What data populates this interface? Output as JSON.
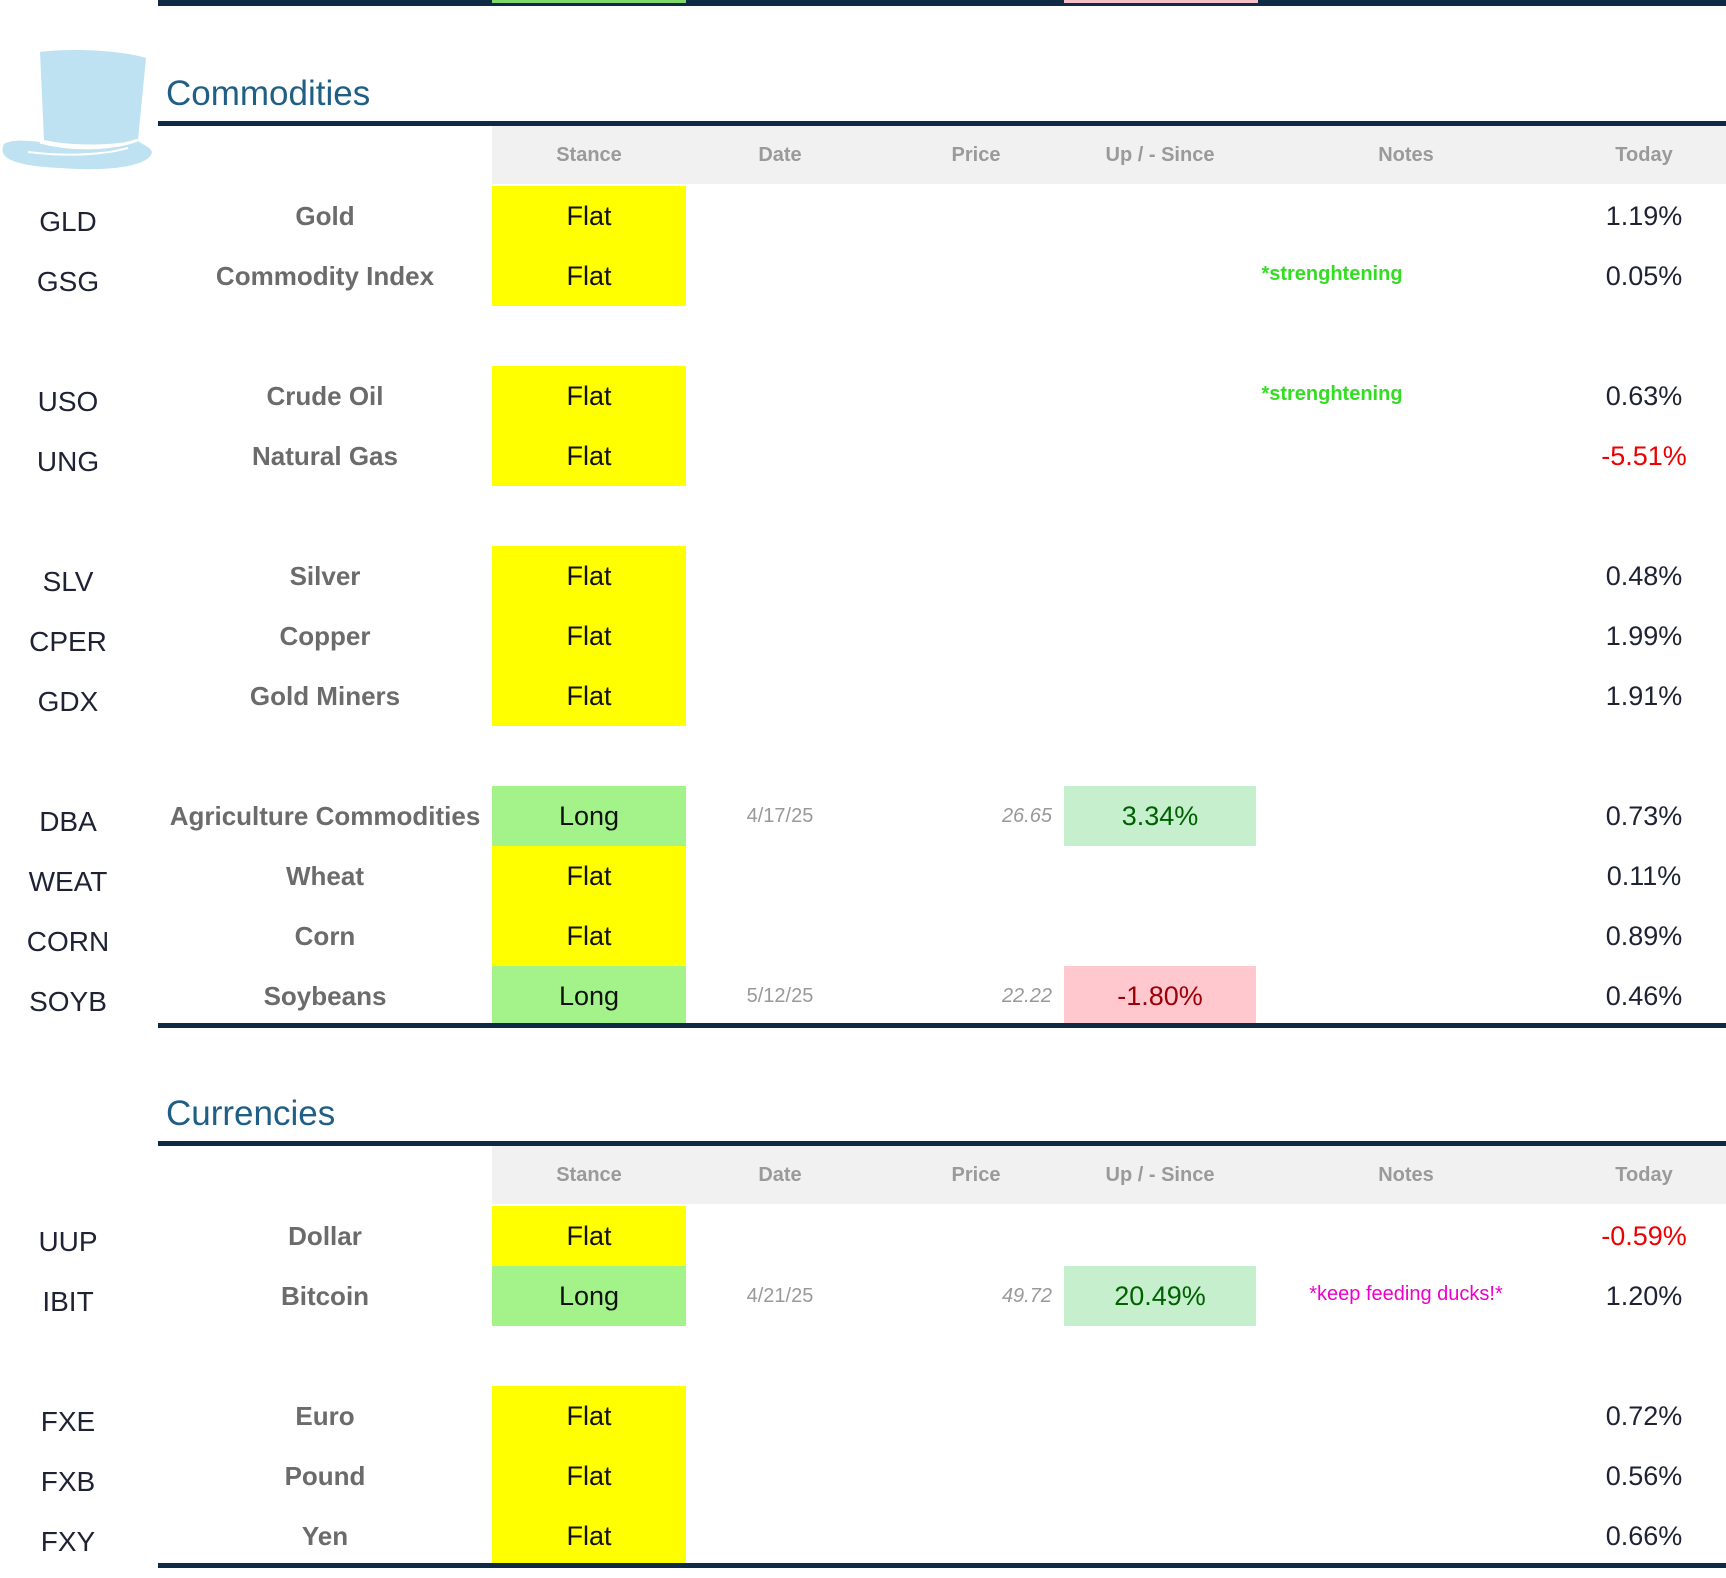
{
  "colors": {
    "title": "#1f5f86",
    "rule": "#0f2a44",
    "flat": "#ffff00",
    "long": "#a3f28a",
    "pos_bg": "#c6efce",
    "neg_bg": "#ffc7ce",
    "note_green": "#33dd22",
    "note_magenta": "#ee00cc",
    "negative": "#ee0000"
  },
  "logo": {
    "icon": "top-hat-icon"
  },
  "headers": {
    "stance": "Stance",
    "date": "Date",
    "price": "Price",
    "since": "Up / - Since",
    "notes": "Notes",
    "today": "Today"
  },
  "commodities": {
    "title": "Commodities",
    "rows": [
      {
        "ticker": "GLD",
        "name": "Gold",
        "stance": "Flat",
        "date": "",
        "price": "",
        "since": "",
        "note": "",
        "today": "1.19%"
      },
      {
        "ticker": "GSG",
        "name": "Commodity Index",
        "stance": "Flat",
        "date": "",
        "price": "",
        "since": "",
        "note": "*strenghtening",
        "today": "0.05%"
      },
      {
        "ticker": "USO",
        "name": "Crude Oil",
        "stance": "Flat",
        "date": "",
        "price": "",
        "since": "",
        "note": "*strenghtening",
        "today": "0.63%"
      },
      {
        "ticker": "UNG",
        "name": "Natural Gas",
        "stance": "Flat",
        "date": "",
        "price": "",
        "since": "",
        "note": "",
        "today": "-5.51%"
      },
      {
        "ticker": "SLV",
        "name": "Silver",
        "stance": "Flat",
        "date": "",
        "price": "",
        "since": "",
        "note": "",
        "today": "0.48%"
      },
      {
        "ticker": "CPER",
        "name": "Copper",
        "stance": "Flat",
        "date": "",
        "price": "",
        "since": "",
        "note": "",
        "today": "1.99%"
      },
      {
        "ticker": "GDX",
        "name": "Gold Miners",
        "stance": "Flat",
        "date": "",
        "price": "",
        "since": "",
        "note": "",
        "today": "1.91%"
      },
      {
        "ticker": "DBA",
        "name": "Agriculture Commodities",
        "stance": "Long",
        "date": "4/17/25",
        "price": "26.65",
        "since": "3.34%",
        "note": "",
        "today": "0.73%"
      },
      {
        "ticker": "WEAT",
        "name": "Wheat",
        "stance": "Flat",
        "date": "",
        "price": "",
        "since": "",
        "note": "",
        "today": "0.11%"
      },
      {
        "ticker": "CORN",
        "name": "Corn",
        "stance": "Flat",
        "date": "",
        "price": "",
        "since": "",
        "note": "",
        "today": "0.89%"
      },
      {
        "ticker": "SOYB",
        "name": "Soybeans",
        "stance": "Long",
        "date": "5/12/25",
        "price": "22.22",
        "since": "-1.80%",
        "note": "",
        "today": "0.46%"
      }
    ]
  },
  "currencies": {
    "title": "Currencies",
    "rows": [
      {
        "ticker": "UUP",
        "name": "Dollar",
        "stance": "Flat",
        "date": "",
        "price": "",
        "since": "",
        "note": "",
        "today": "-0.59%"
      },
      {
        "ticker": "IBIT",
        "name": "Bitcoin",
        "stance": "Long",
        "date": "4/21/25",
        "price": "49.72",
        "since": "20.49%",
        "note": "*keep feeding ducks!*",
        "today": "1.20%"
      },
      {
        "ticker": "FXE",
        "name": "Euro",
        "stance": "Flat",
        "date": "",
        "price": "",
        "since": "",
        "note": "",
        "today": "0.72%"
      },
      {
        "ticker": "FXB",
        "name": "Pound",
        "stance": "Flat",
        "date": "",
        "price": "",
        "since": "",
        "note": "",
        "today": "0.56%"
      },
      {
        "ticker": "FXY",
        "name": "Yen",
        "stance": "Flat",
        "date": "",
        "price": "",
        "since": "",
        "note": "",
        "today": "0.66%"
      }
    ]
  }
}
